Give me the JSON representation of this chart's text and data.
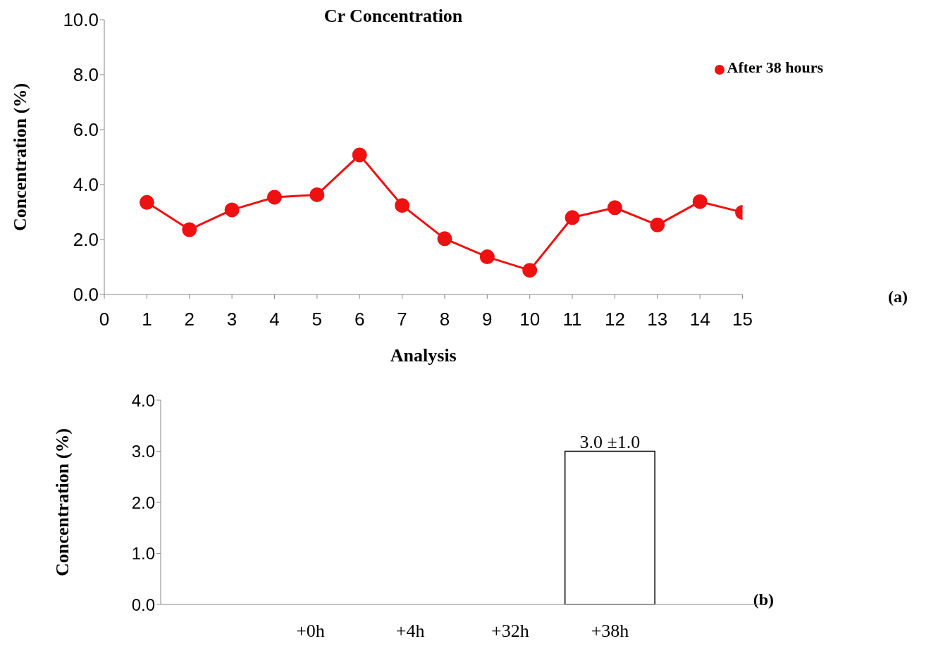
{
  "chart_data": [
    {
      "type": "line",
      "title": "Cr Concentration",
      "xlabel": "Analysis",
      "ylabel": "Concentration (%)",
      "annotations": [
        "(a)"
      ],
      "x": [
        1,
        2,
        3,
        4,
        5,
        6,
        7,
        8,
        9,
        10,
        11,
        12,
        13,
        14,
        15
      ],
      "series": [
        {
          "name": "After 38 hours",
          "color": "#ee1111",
          "values": [
            3.35,
            2.36,
            3.08,
            3.54,
            3.63,
            5.08,
            3.24,
            2.03,
            1.37,
            0.88,
            2.8,
            3.16,
            2.53,
            3.38,
            2.99
          ]
        }
      ],
      "xlim": [
        0,
        15
      ],
      "xticks": [
        0,
        1,
        2,
        3,
        4,
        5,
        6,
        7,
        8,
        9,
        10,
        11,
        12,
        13,
        14,
        15
      ],
      "ylim": [
        0,
        10
      ],
      "yticks": [
        {
          "value": 0,
          "label": "0.0"
        },
        {
          "value": 2,
          "label": "2.0"
        },
        {
          "value": 4,
          "label": "4.0"
        },
        {
          "value": 6,
          "label": "6.0"
        },
        {
          "value": 8,
          "label": "8.0"
        },
        {
          "value": 10,
          "label": "10.0"
        }
      ],
      "marker": "circle",
      "line_style": "solid",
      "legend": "top right"
    },
    {
      "type": "bar",
      "ylabel": "Concentration (%)",
      "annotations": [
        "(b)"
      ],
      "categories": [
        null,
        "+0h",
        "+4h",
        "+32h",
        "+38h",
        null
      ],
      "values": [
        null,
        0,
        0,
        0,
        3.0,
        null
      ],
      "color": "#ffffff",
      "value_labels": [
        null,
        null,
        null,
        null,
        "3.0 ±1.0",
        null
      ],
      "ylim": [
        0,
        4
      ],
      "yticks": [
        {
          "value": 0,
          "label": "0.0"
        },
        {
          "value": 1,
          "label": "1.0"
        },
        {
          "value": 2,
          "label": "2.0"
        },
        {
          "value": 3,
          "label": "3.0"
        },
        {
          "value": 4,
          "label": "4.0"
        }
      ]
    }
  ]
}
